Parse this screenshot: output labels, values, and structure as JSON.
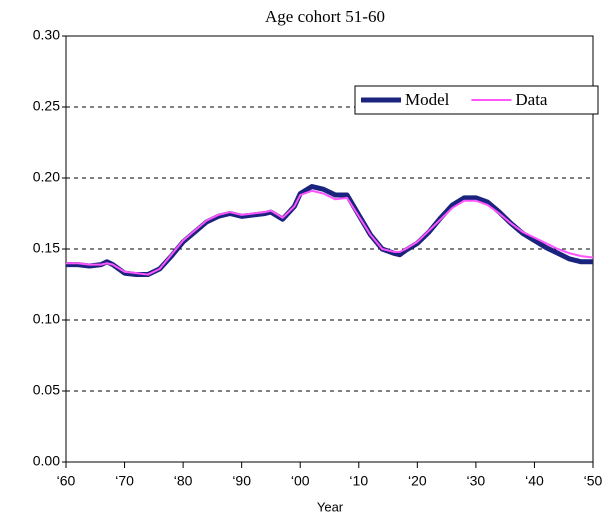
{
  "chart_data": {
    "type": "line",
    "title": "Age cohort 51-60",
    "x_label": "Year",
    "x": [
      1960,
      1962,
      1964,
      1966,
      1967,
      1968,
      1970,
      1972,
      1974,
      1976,
      1978,
      1980,
      1982,
      1984,
      1986,
      1988,
      1990,
      1992,
      1994,
      1995,
      1997,
      1999,
      2000,
      2002,
      2004,
      2006,
      2008,
      2010,
      2012,
      2014,
      2016,
      2017,
      2018,
      2020,
      2022,
      2024,
      2026,
      2028,
      2030,
      2032,
      2034,
      2036,
      2038,
      2040,
      2042,
      2044,
      2046,
      2048,
      2050
    ],
    "series": [
      {
        "name": "Model",
        "color": "#1a237e",
        "values": [
          0.139,
          0.139,
          0.138,
          0.139,
          0.141,
          0.139,
          0.133,
          0.132,
          0.132,
          0.136,
          0.145,
          0.155,
          0.162,
          0.169,
          0.173,
          0.175,
          0.173,
          0.174,
          0.175,
          0.176,
          0.171,
          0.18,
          0.189,
          0.194,
          0.192,
          0.188,
          0.188,
          0.174,
          0.16,
          0.15,
          0.147,
          0.146,
          0.149,
          0.154,
          0.162,
          0.172,
          0.181,
          0.186,
          0.186,
          0.183,
          0.176,
          0.168,
          0.161,
          0.156,
          0.151,
          0.147,
          0.143,
          0.141,
          0.141
        ]
      },
      {
        "name": "Data",
        "color": "#ff55ff",
        "values": [
          0.14,
          0.14,
          0.139,
          0.139,
          0.14,
          0.139,
          0.134,
          0.133,
          0.132,
          0.136,
          0.146,
          0.156,
          0.163,
          0.17,
          0.174,
          0.176,
          0.174,
          0.175,
          0.176,
          0.177,
          0.172,
          0.18,
          0.188,
          0.191,
          0.189,
          0.185,
          0.186,
          0.173,
          0.16,
          0.15,
          0.148,
          0.148,
          0.15,
          0.155,
          0.163,
          0.171,
          0.179,
          0.184,
          0.184,
          0.181,
          0.175,
          0.168,
          0.162,
          0.158,
          0.154,
          0.15,
          0.147,
          0.145,
          0.144
        ]
      }
    ],
    "xlim": [
      1960,
      2050
    ],
    "xticks": [
      {
        "value": 1960,
        "label": "‘60"
      },
      {
        "value": 1970,
        "label": "‘70"
      },
      {
        "value": 1980,
        "label": "‘80"
      },
      {
        "value": 1990,
        "label": "‘90"
      },
      {
        "value": 2000,
        "label": "‘00"
      },
      {
        "value": 2010,
        "label": "‘10"
      },
      {
        "value": 2020,
        "label": "‘20"
      },
      {
        "value": 2030,
        "label": "‘30"
      },
      {
        "value": 2040,
        "label": "‘40"
      },
      {
        "value": 2050,
        "label": "‘50"
      }
    ],
    "ylim": [
      0,
      0.3
    ],
    "yticks": [
      {
        "value": 0,
        "label": "0.00"
      },
      {
        "value": 0.05,
        "label": "0.05"
      },
      {
        "value": 0.1,
        "label": "0.10"
      },
      {
        "value": 0.15,
        "label": "0.15"
      },
      {
        "value": 0.2,
        "label": "0.20"
      },
      {
        "value": 0.25,
        "label": "0.25"
      },
      {
        "value": 0.3,
        "label": "0.30"
      }
    ],
    "grid": true,
    "legend": "upper right"
  }
}
